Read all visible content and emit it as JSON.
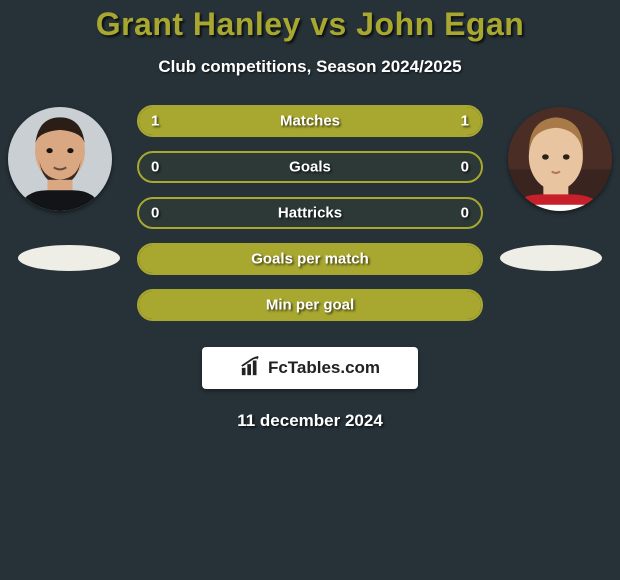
{
  "title": "Grant Hanley vs John Egan",
  "subtitle": "Club competitions, Season 2024/2025",
  "date": "11 december 2024",
  "brand": "FcTables.com",
  "colors": {
    "accent": "#a8a72f",
    "bg": "#263238",
    "white": "#ffffff"
  },
  "rows": [
    {
      "label": "Matches",
      "left": "1",
      "right": "1",
      "fill_left_pct": 50,
      "fill_right_pct": 50
    },
    {
      "label": "Goals",
      "left": "0",
      "right": "0",
      "fill_left_pct": 0,
      "fill_right_pct": 0
    },
    {
      "label": "Hattricks",
      "left": "0",
      "right": "0",
      "fill_left_pct": 0,
      "fill_right_pct": 0
    },
    {
      "label": "Goals per match",
      "left": "",
      "right": "",
      "fill_left_pct": 100,
      "fill_right_pct": 0
    },
    {
      "label": "Min per goal",
      "left": "",
      "right": "",
      "fill_left_pct": 100,
      "fill_right_pct": 0
    }
  ]
}
